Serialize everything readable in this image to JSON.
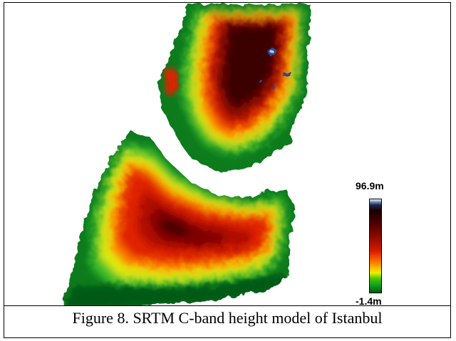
{
  "figure": {
    "caption": "Figure 8. SRTM C-band height model of Istanbul"
  },
  "legend": {
    "max_label": "96.9m",
    "min_label": "-1.4m",
    "colors": [
      "#f0f4ff",
      "#1e2a4a",
      "#4a0000",
      "#8a0a00",
      "#d41a00",
      "#ff6a00",
      "#ffc000",
      "#e8f000",
      "#4cc400",
      "#11a020",
      "#005a10"
    ]
  }
}
